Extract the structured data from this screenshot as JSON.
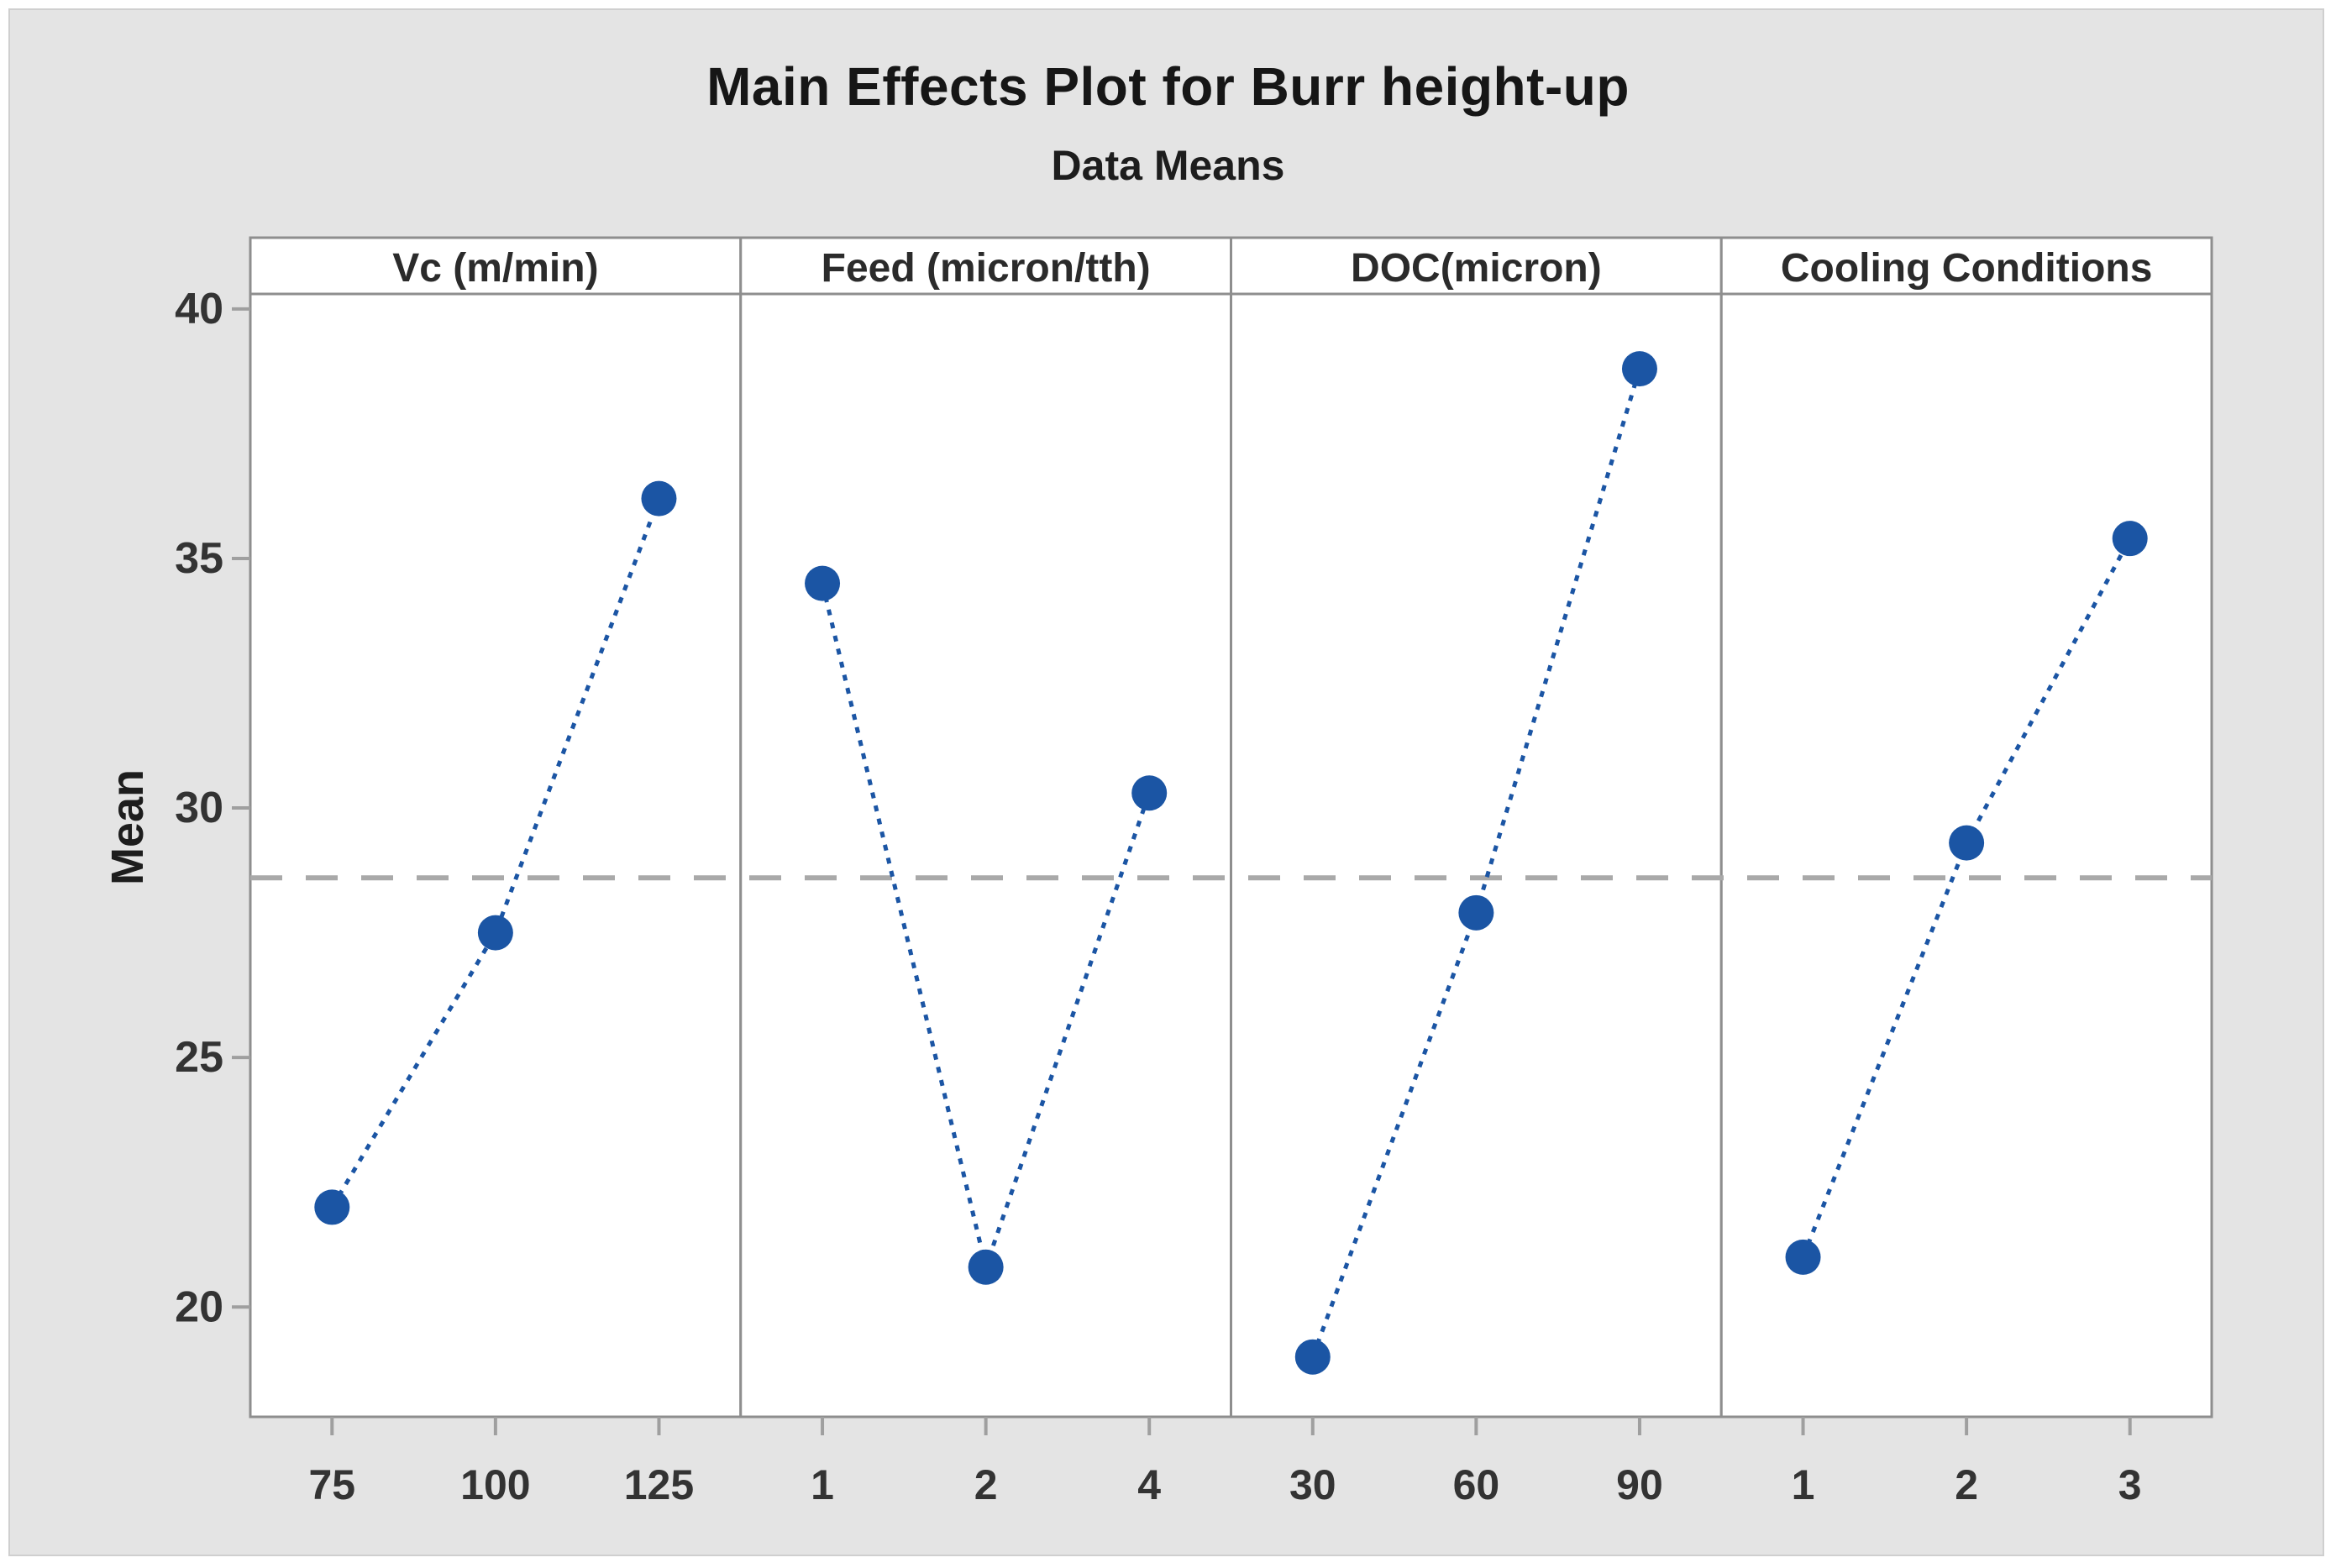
{
  "chart_data": {
    "type": "line",
    "title": "Main Effects Plot for Burr height-up",
    "subtitle": "Data Means",
    "ylabel": "Mean",
    "xlabel": "",
    "yticks": [
      40,
      35,
      30,
      25,
      20
    ],
    "ylim": [
      17.8,
      40.3
    ],
    "grid": false,
    "legend": false,
    "marker": "circle",
    "line_style": "dotted",
    "reference_line": {
      "value": 28.6,
      "style": "dashed"
    },
    "panels": [
      {
        "label": "Vc (m/min)",
        "categories": [
          "75",
          "100",
          "125"
        ],
        "values": [
          22.0,
          27.5,
          36.2
        ]
      },
      {
        "label": "Feed (micron/tth)",
        "categories": [
          "1",
          "2",
          "4"
        ],
        "values": [
          34.5,
          20.8,
          30.3
        ]
      },
      {
        "label": "DOC(micron)",
        "categories": [
          "30",
          "60",
          "90"
        ],
        "values": [
          19.0,
          27.9,
          38.8
        ]
      },
      {
        "label": "Cooling Conditions",
        "categories": [
          "1",
          "2",
          "3"
        ],
        "values": [
          21.0,
          29.3,
          35.4
        ]
      }
    ],
    "colors": {
      "series_blue": "#1b55a4",
      "reference_gray": "#a9a9a9",
      "panel_border": "#8e8e8e",
      "panel_bg": "#ffffff",
      "figure_bg": "#e4e4e4",
      "tick_mark_gray": "#9f9f9f"
    }
  }
}
